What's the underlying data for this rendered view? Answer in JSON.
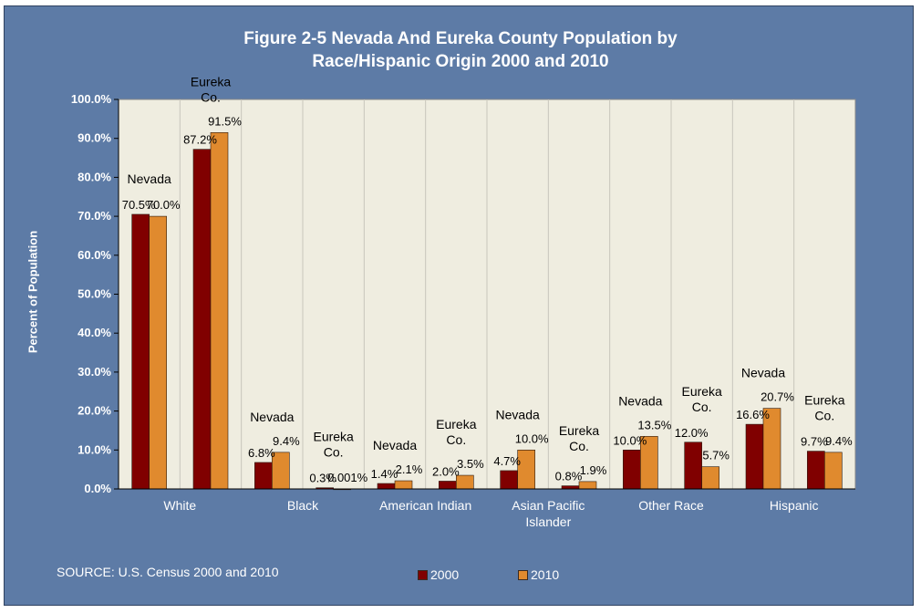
{
  "chart_data": {
    "type": "bar",
    "title": "Figure 2-5 Nevada And Eureka County Population by",
    "title_line2": "Race/Hispanic Origin 2000 and 2010",
    "xlabel": "",
    "ylabel": "Percent of Population",
    "ylim": [
      0,
      100
    ],
    "y_ticks": [
      "0.0%",
      "10.0%",
      "20.0%",
      "30.0%",
      "40.0%",
      "50.0%",
      "60.0%",
      "70.0%",
      "80.0%",
      "90.0%",
      "100.0%"
    ],
    "categories": [
      "White",
      "Black",
      "American Indian",
      "Asian Pacific|Islander",
      "Other Race",
      "Hispanic"
    ],
    "groups": [
      {
        "category": 0,
        "label": "Nevada",
        "v2000": 70.5,
        "v2010": 70.0,
        "l2000": "70.5%",
        "l2010": "70.0%"
      },
      {
        "category": 0,
        "label": "Eureka|Co.",
        "v2000": 87.2,
        "v2010": 91.5,
        "l2000": "87.2%",
        "l2010": "91.5%"
      },
      {
        "category": 1,
        "label": "Nevada",
        "v2000": 6.8,
        "v2010": 9.4,
        "l2000": "6.8%",
        "l2010": "9.4%"
      },
      {
        "category": 1,
        "label": "Eureka|Co.",
        "v2000": 0.3,
        "v2010": 0.001,
        "l2000": "0.3%",
        "l2010": "0.001%"
      },
      {
        "category": 2,
        "label": "Nevada",
        "v2000": 1.4,
        "v2010": 2.1,
        "l2000": "1.4%",
        "l2010": "2.1%"
      },
      {
        "category": 2,
        "label": "Eureka|Co.",
        "v2000": 2.0,
        "v2010": 3.5,
        "l2000": "2.0%",
        "l2010": "3.5%"
      },
      {
        "category": 3,
        "label": "Nevada",
        "v2000": 4.7,
        "v2010": 10.0,
        "l2000": "4.7%",
        "l2010": "10.0%"
      },
      {
        "category": 3,
        "label": "Eureka|Co.",
        "v2000": 0.8,
        "v2010": 1.9,
        "l2000": "0.8%",
        "l2010": "1.9%"
      },
      {
        "category": 4,
        "label": "Nevada",
        "v2000": 10.0,
        "v2010": 13.5,
        "l2000": "10.0%",
        "l2010": "13.5%"
      },
      {
        "category": 4,
        "label": "Eureka|Co.",
        "v2000": 12.0,
        "v2010": 5.7,
        "l2000": "12.0%",
        "l2010": "5.7%"
      },
      {
        "category": 5,
        "label": "Nevada",
        "v2000": 16.6,
        "v2010": 20.7,
        "l2000": "16.6%",
        "l2010": "20.7%"
      },
      {
        "category": 5,
        "label": "Eureka|Co.",
        "v2000": 9.7,
        "v2010": 9.4,
        "l2000": "9.7%",
        "l2010": "9.4%"
      }
    ],
    "series": [
      {
        "name": "2000",
        "color": "#800000"
      },
      {
        "name": "2010",
        "color": "#e08a2e"
      }
    ],
    "legend_position": "bottom",
    "grid": false,
    "source": "SOURCE: U.S. Census 2000 and 2010"
  }
}
